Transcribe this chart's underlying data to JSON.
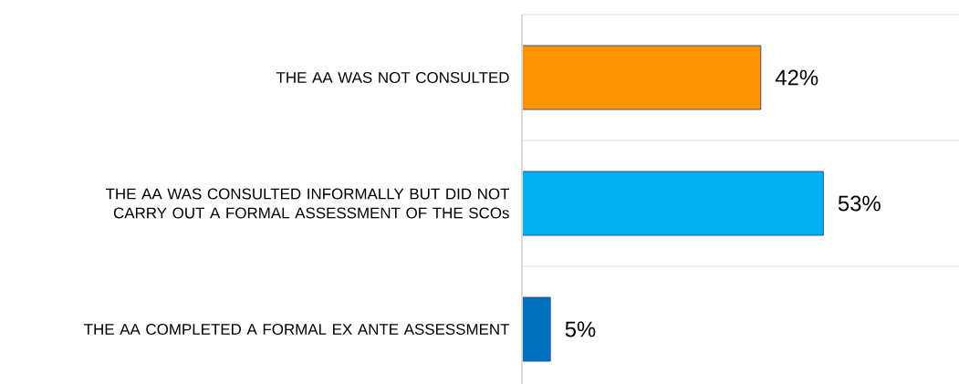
{
  "chart_data": {
    "type": "bar",
    "orientation": "horizontal",
    "categories": [
      "THE AA WAS NOT CONSULTED",
      "THE AA WAS CONSULTED INFORMALLY BUT DID NOT CARRY OUT A FORMAL ASSESSMENT OF THE SCOs",
      "THE AA COMPLETED A FORMAL EX ANTE ASSESSMENT"
    ],
    "values": [
      42,
      53,
      5
    ],
    "colors": [
      "#ff9300",
      "#00b0f0",
      "#0070c0"
    ],
    "value_labels": [
      "42%",
      "53%",
      "5%"
    ],
    "grid": "y"
  }
}
